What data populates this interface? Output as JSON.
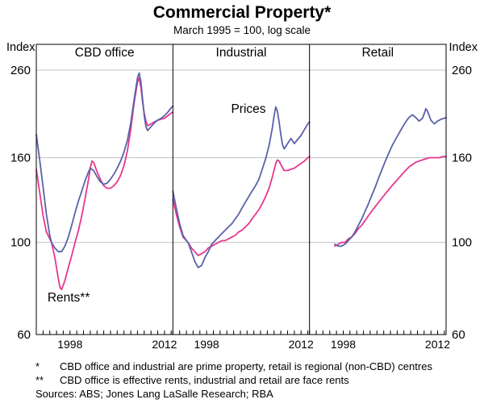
{
  "colors": {
    "prices": "#5a62a8",
    "rents": "#e8368f",
    "grid": "#c0c0c0",
    "axis": "#000000"
  },
  "footnotes": [
    {
      "marker": "*",
      "text": "CBD office and industrial are prime property, retail is regional (non-CBD) centres"
    },
    {
      "marker": "**",
      "text": "CBD office is effective rents, industrial and retail are face rents"
    }
  ],
  "sources": "Sources: ABS; Jones Lang LaSalle Research; RBA",
  "chart_data": {
    "type": "line",
    "title": "Commercial Property*",
    "subtitle": "March 1995 = 100, log scale",
    "axis": {
      "left_label": "Index",
      "right_label": "Index",
      "y_scale": "log",
      "y_min": 60,
      "y_max": 300,
      "y_ticks": [
        60,
        100,
        160,
        260
      ],
      "y_gridlines": [
        100,
        160,
        260
      ],
      "x_min": 1993,
      "x_max": 2013.25,
      "x_tick_step_years": 1,
      "x_labeled_years": [
        1998,
        2012
      ]
    },
    "annotations": [
      {
        "text": "Prices",
        "panel": 1,
        "x": 2004.2,
        "y": 205,
        "series": "prices"
      },
      {
        "text": "Rents**",
        "panel": 0,
        "x": 1997.8,
        "y": 72,
        "series": "rents"
      }
    ],
    "panels": [
      {
        "title": "CBD office",
        "series": {
          "prices": [
            [
              1993.0,
              182
            ],
            [
              1993.5,
              158
            ],
            [
              1994.0,
              136
            ],
            [
              1994.5,
              117
            ],
            [
              1995.0,
              104
            ],
            [
              1995.25,
              100
            ],
            [
              1995.75,
              97
            ],
            [
              1996.25,
              95
            ],
            [
              1996.75,
              95
            ],
            [
              1997.25,
              98
            ],
            [
              1997.75,
              103
            ],
            [
              1998.25,
              110
            ],
            [
              1998.75,
              118
            ],
            [
              1999.25,
              126
            ],
            [
              1999.75,
              133
            ],
            [
              2000.25,
              141
            ],
            [
              2000.75,
              148
            ],
            [
              2001.0,
              151
            ],
            [
              2001.5,
              149
            ],
            [
              2002.0,
              144
            ],
            [
              2002.5,
              140
            ],
            [
              2003.0,
              138
            ],
            [
              2003.5,
              139
            ],
            [
              2004.0,
              142
            ],
            [
              2004.5,
              146
            ],
            [
              2005.0,
              151
            ],
            [
              2005.5,
              157
            ],
            [
              2006.0,
              165
            ],
            [
              2006.5,
              176
            ],
            [
              2007.0,
              194
            ],
            [
              2007.5,
              221
            ],
            [
              2008.0,
              249
            ],
            [
              2008.25,
              256
            ],
            [
              2008.5,
              244
            ],
            [
              2008.75,
              222
            ],
            [
              2009.0,
              202
            ],
            [
              2009.25,
              190
            ],
            [
              2009.5,
              186
            ],
            [
              2010.0,
              190
            ],
            [
              2010.5,
              194
            ],
            [
              2011.0,
              197
            ],
            [
              2011.5,
              199
            ],
            [
              2012.0,
              202
            ],
            [
              2012.5,
              206
            ],
            [
              2013.0,
              211
            ],
            [
              2013.25,
              213
            ]
          ],
          "rents": [
            [
              1993.0,
              150
            ],
            [
              1993.5,
              132
            ],
            [
              1994.0,
              116
            ],
            [
              1994.5,
              106
            ],
            [
              1995.0,
              102
            ],
            [
              1995.25,
              100
            ],
            [
              1995.75,
              92
            ],
            [
              1996.25,
              82
            ],
            [
              1996.5,
              78
            ],
            [
              1996.75,
              77
            ],
            [
              1997.25,
              81
            ],
            [
              1997.75,
              87
            ],
            [
              1998.25,
              93
            ],
            [
              1998.75,
              100
            ],
            [
              1999.25,
              107
            ],
            [
              1999.75,
              116
            ],
            [
              2000.25,
              128
            ],
            [
              2000.75,
              142
            ],
            [
              2001.0,
              151
            ],
            [
              2001.25,
              157
            ],
            [
              2001.5,
              156
            ],
            [
              2002.0,
              148
            ],
            [
              2002.5,
              142
            ],
            [
              2003.0,
              137
            ],
            [
              2003.5,
              135
            ],
            [
              2004.0,
              135
            ],
            [
              2004.5,
              137
            ],
            [
              2005.0,
              140
            ],
            [
              2005.5,
              145
            ],
            [
              2006.0,
              153
            ],
            [
              2006.5,
              166
            ],
            [
              2007.0,
              187
            ],
            [
              2007.5,
              217
            ],
            [
              2008.0,
              243
            ],
            [
              2008.25,
              249
            ],
            [
              2008.5,
              237
            ],
            [
              2008.75,
              218
            ],
            [
              2009.0,
              205
            ],
            [
              2009.25,
              196
            ],
            [
              2009.5,
              191
            ],
            [
              2010.0,
              193
            ],
            [
              2010.5,
              195
            ],
            [
              2011.0,
              197
            ],
            [
              2011.5,
              198
            ],
            [
              2012.0,
              199
            ],
            [
              2012.5,
              202
            ],
            [
              2013.0,
              205
            ],
            [
              2013.25,
              206
            ]
          ]
        }
      },
      {
        "title": "Industrial",
        "series": {
          "prices": [
            [
              1993.0,
              133
            ],
            [
              1993.5,
              121
            ],
            [
              1994.0,
              111
            ],
            [
              1994.5,
              104
            ],
            [
              1995.0,
              101
            ],
            [
              1995.25,
              100
            ],
            [
              1995.75,
              95
            ],
            [
              1996.25,
              90
            ],
            [
              1996.75,
              87
            ],
            [
              1997.25,
              88
            ],
            [
              1997.75,
              92
            ],
            [
              1998.25,
              95
            ],
            [
              1998.75,
              99
            ],
            [
              1999.25,
              101
            ],
            [
              1999.75,
              103
            ],
            [
              2000.25,
              105
            ],
            [
              2000.75,
              107
            ],
            [
              2001.25,
              109
            ],
            [
              2001.75,
              111
            ],
            [
              2002.25,
              114
            ],
            [
              2002.75,
              117
            ],
            [
              2003.25,
              121
            ],
            [
              2003.75,
              125
            ],
            [
              2004.25,
              129
            ],
            [
              2004.75,
              133
            ],
            [
              2005.25,
              137
            ],
            [
              2005.75,
              142
            ],
            [
              2006.25,
              150
            ],
            [
              2006.75,
              159
            ],
            [
              2007.25,
              171
            ],
            [
              2007.75,
              189
            ],
            [
              2008.0,
              202
            ],
            [
              2008.25,
              212
            ],
            [
              2008.5,
              207
            ],
            [
              2008.75,
              195
            ],
            [
              2009.0,
              182
            ],
            [
              2009.25,
              172
            ],
            [
              2009.5,
              168
            ],
            [
              2010.0,
              173
            ],
            [
              2010.5,
              178
            ],
            [
              2011.0,
              173
            ],
            [
              2011.5,
              177
            ],
            [
              2012.0,
              181
            ],
            [
              2012.5,
              187
            ],
            [
              2013.0,
              193
            ],
            [
              2013.25,
              195
            ]
          ],
          "rents": [
            [
              1993.0,
              127
            ],
            [
              1993.5,
              117
            ],
            [
              1994.0,
              109
            ],
            [
              1994.5,
              103
            ],
            [
              1995.0,
              101
            ],
            [
              1995.25,
              100
            ],
            [
              1995.75,
              97
            ],
            [
              1996.25,
              95
            ],
            [
              1996.75,
              93
            ],
            [
              1997.25,
              94
            ],
            [
              1997.75,
              95
            ],
            [
              1998.25,
              97
            ],
            [
              1998.75,
              98
            ],
            [
              1999.25,
              99
            ],
            [
              1999.75,
              100
            ],
            [
              2000.25,
              101
            ],
            [
              2000.75,
              101
            ],
            [
              2001.25,
              102
            ],
            [
              2001.75,
              103
            ],
            [
              2002.25,
              104
            ],
            [
              2002.75,
              106
            ],
            [
              2003.25,
              107
            ],
            [
              2003.75,
              109
            ],
            [
              2004.25,
              111
            ],
            [
              2004.75,
              114
            ],
            [
              2005.25,
              117
            ],
            [
              2005.75,
              120
            ],
            [
              2006.25,
              124
            ],
            [
              2006.75,
              129
            ],
            [
              2007.25,
              135
            ],
            [
              2007.75,
              144
            ],
            [
              2008.25,
              155
            ],
            [
              2008.5,
              158
            ],
            [
              2008.75,
              157
            ],
            [
              2009.0,
              154
            ],
            [
              2009.5,
              149
            ],
            [
              2010.0,
              149
            ],
            [
              2010.5,
              150
            ],
            [
              2011.0,
              151
            ],
            [
              2011.5,
              153
            ],
            [
              2012.0,
              155
            ],
            [
              2012.5,
              157
            ],
            [
              2013.0,
              160
            ],
            [
              2013.25,
              161
            ]
          ]
        }
      },
      {
        "title": "Retail",
        "series": {
          "prices": [
            [
              1996.75,
              99
            ],
            [
              1997.25,
              98
            ],
            [
              1997.75,
              98
            ],
            [
              1998.25,
              99
            ],
            [
              1998.75,
              101
            ],
            [
              1999.25,
              103
            ],
            [
              1999.75,
              106
            ],
            [
              2000.25,
              110
            ],
            [
              2000.75,
              114
            ],
            [
              2001.25,
              119
            ],
            [
              2001.75,
              124
            ],
            [
              2002.25,
              130
            ],
            [
              2002.75,
              136
            ],
            [
              2003.25,
              143
            ],
            [
              2003.75,
              150
            ],
            [
              2004.25,
              157
            ],
            [
              2004.75,
              164
            ],
            [
              2005.25,
              171
            ],
            [
              2005.75,
              177
            ],
            [
              2006.25,
              183
            ],
            [
              2006.75,
              189
            ],
            [
              2007.25,
              195
            ],
            [
              2007.75,
              200
            ],
            [
              2008.25,
              203
            ],
            [
              2008.75,
              200
            ],
            [
              2009.25,
              196
            ],
            [
              2009.75,
              199
            ],
            [
              2010.0,
              204
            ],
            [
              2010.25,
              210
            ],
            [
              2010.5,
              207
            ],
            [
              2011.0,
              197
            ],
            [
              2011.5,
              193
            ],
            [
              2012.0,
              196
            ],
            [
              2012.5,
              198
            ],
            [
              2013.0,
              199
            ],
            [
              2013.25,
              200
            ]
          ],
          "rents": [
            [
              1996.75,
              98
            ],
            [
              1997.25,
              99
            ],
            [
              1997.75,
              100
            ],
            [
              1998.25,
              100
            ],
            [
              1998.75,
              102
            ],
            [
              1999.25,
              103
            ],
            [
              1999.75,
              105
            ],
            [
              2000.25,
              108
            ],
            [
              2000.75,
              110
            ],
            [
              2001.25,
              113
            ],
            [
              2001.75,
              116
            ],
            [
              2002.25,
              119
            ],
            [
              2002.75,
              122
            ],
            [
              2003.25,
              125
            ],
            [
              2003.75,
              128
            ],
            [
              2004.25,
              131
            ],
            [
              2004.75,
              134
            ],
            [
              2005.25,
              137
            ],
            [
              2005.75,
              140
            ],
            [
              2006.25,
              143
            ],
            [
              2006.75,
              146
            ],
            [
              2007.25,
              149
            ],
            [
              2007.75,
              152
            ],
            [
              2008.25,
              154
            ],
            [
              2008.75,
              156
            ],
            [
              2009.25,
              157
            ],
            [
              2009.75,
              158
            ],
            [
              2010.25,
              159
            ],
            [
              2010.75,
              160
            ],
            [
              2011.25,
              160
            ],
            [
              2011.75,
              160
            ],
            [
              2012.25,
              160
            ],
            [
              2012.75,
              161
            ],
            [
              2013.25,
              161
            ]
          ]
        }
      }
    ]
  }
}
